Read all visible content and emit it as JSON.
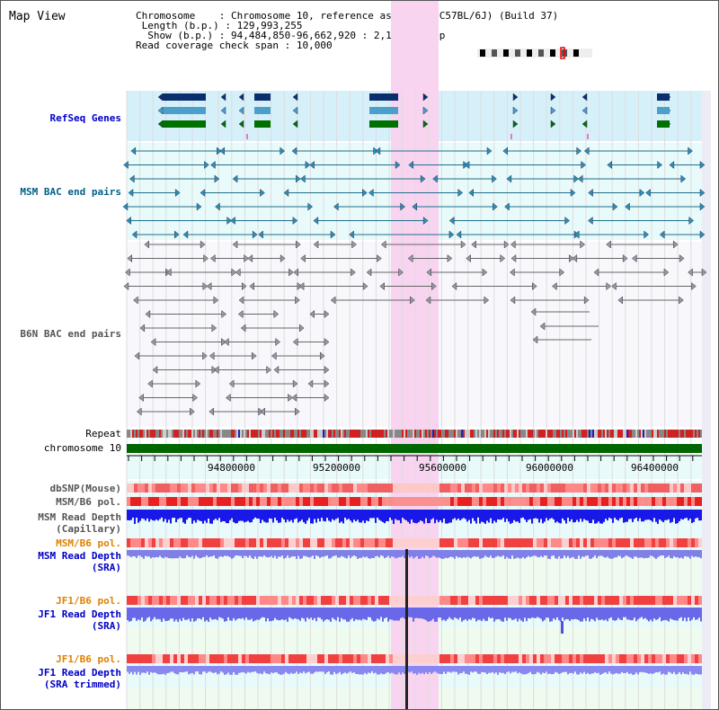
{
  "title": "Map View",
  "info": {
    "chromosome_label": "Chromosome",
    "chromosome_value": "Chromosome 10, reference assembly (C57BL/6J) (Build 37)",
    "length_label": "Length (b.p.)",
    "length_value": "129,993,255",
    "show_label": "Show (b.p.)",
    "show_value": "94,484,850-96,662,920 : 2,178,071 bp",
    "span_label": "Read coverage check span",
    "span_value": "10,000"
  },
  "tracks": {
    "refseq": "RefSeq Genes",
    "msm_bac": "MSM BAC end pairs",
    "b6n_bac": "B6N BAC end pairs",
    "repeat": "Repeat",
    "chromosome": "chromosome 10",
    "dbsnp": "dbSNP(Mouse)",
    "msm_b6_pol_1": "MSM/B6 pol.",
    "msm_depth_cap_1": "MSM Read Depth",
    "msm_depth_cap_2": "(Capillary)",
    "msm_b6_pol_2": "MSM/B6 pol.",
    "msm_depth_sra_1": "MSM Read Depth",
    "msm_depth_sra_2": "(SRA)",
    "jf1_b6_pol_1": "JF1/B6 pol.",
    "jf1_depth_sra_1": "JF1 Read Depth",
    "jf1_depth_sra_2": "(SRA)",
    "jf1_b6_pol_2": "JF1/B6 pol.",
    "jf1_depth_trim_1": "JF1 Read Depth",
    "jf1_depth_trim_2": "(SRA trimmed)"
  },
  "axis": {
    "ticks": [
      "94800000",
      "95200000",
      "95600000",
      "96000000",
      "96400000"
    ]
  },
  "colors": {
    "highlight": "#f8d4f0",
    "refseq_bg": "#d6f0fa",
    "track_bg": "#e8fafa",
    "chrom_green": "#006600",
    "pol_red": "#ff5050",
    "depth_blue": "#1f1fe0",
    "label_blue": "#0000c8",
    "label_orange": "#e08000",
    "label_teal": "#005f87"
  }
}
